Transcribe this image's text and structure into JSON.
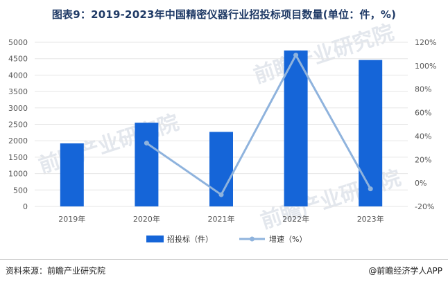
{
  "title": "图表9：2019-2023年中国精密仪器行业招投标项目数量(单位：件，%)",
  "footer": {
    "source": "资料来源：前瞻产业研究院",
    "credit": "@前瞻经济学人APP"
  },
  "watermark": "前瞻产业研究院",
  "colors": {
    "bar": "#1565d8",
    "line": "#8fb3dd",
    "grid": "#e6e6e6"
  },
  "chart_data": {
    "type": "bar+line",
    "categories": [
      "2019年",
      "2020年",
      "2021年",
      "2022年",
      "2023年"
    ],
    "series": [
      {
        "name": "招投标（件）",
        "type": "bar",
        "axis": "left",
        "values": [
          1920,
          2550,
          2270,
          4750,
          4460
        ]
      },
      {
        "name": "增速（%）",
        "type": "line",
        "axis": "right",
        "values": [
          null,
          34,
          -10,
          109,
          -5
        ]
      }
    ],
    "y_left": {
      "min": 0,
      "max": 5000,
      "ticks": [
        "0",
        "500",
        "1000",
        "1500",
        "2000",
        "2500",
        "3000",
        "3500",
        "4000",
        "4500",
        "5000"
      ]
    },
    "y_right": {
      "min": -20,
      "max": 120,
      "ticks": [
        "-20%",
        "0%",
        "20%",
        "40%",
        "60%",
        "80%",
        "100%",
        "120%"
      ]
    },
    "grid": true,
    "legend_position": "bottom"
  }
}
